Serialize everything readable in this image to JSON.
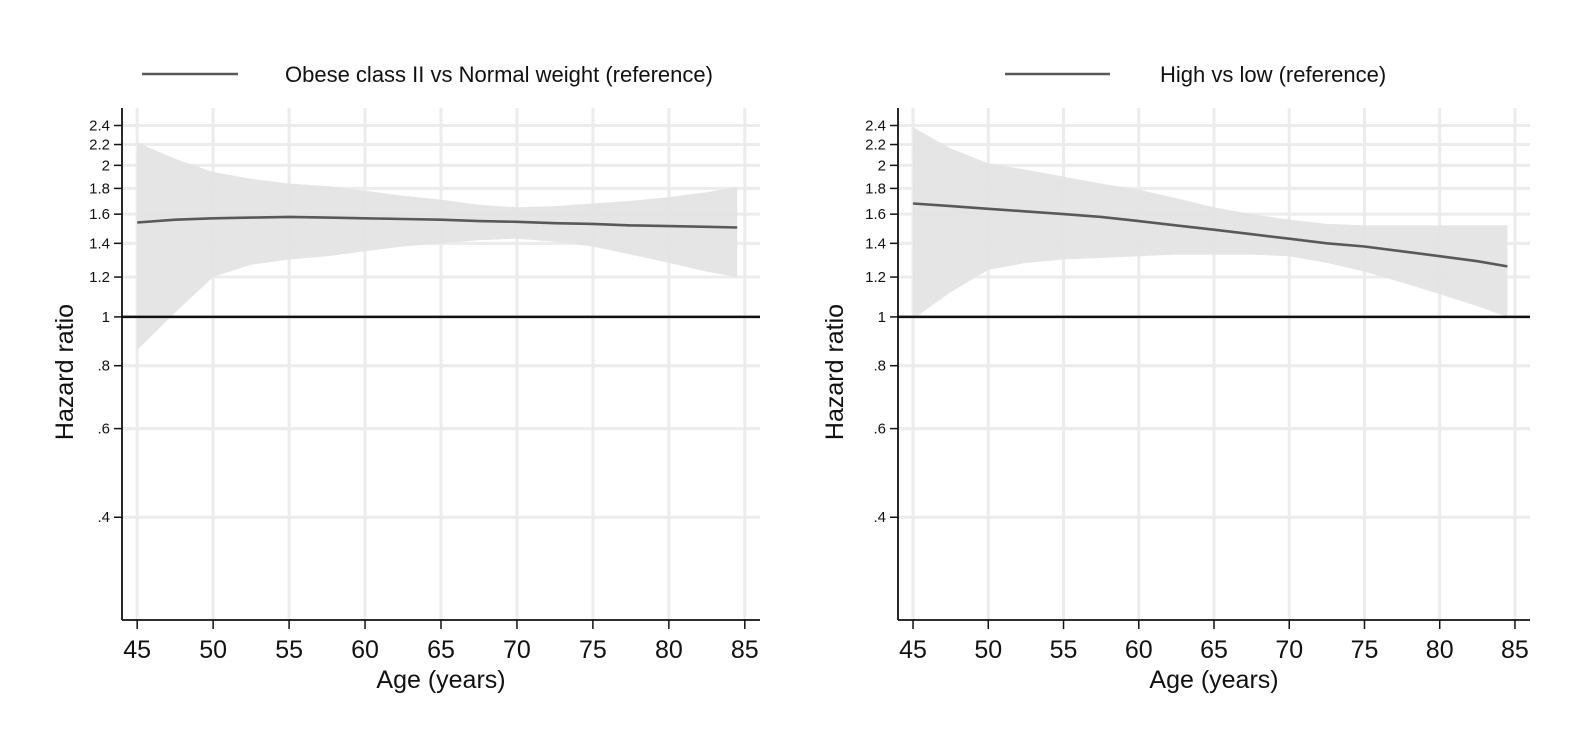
{
  "chart_data": [
    {
      "type": "line",
      "xlabel": "Age (years)",
      "ylabel": "Hazard ratio",
      "y_scale": "log",
      "xlim": [
        44,
        86
      ],
      "ylim": [
        0.25,
        2.6
      ],
      "x_ticks": [
        45,
        50,
        55,
        60,
        65,
        70,
        75,
        80,
        85
      ],
      "y_ticks": [
        ".4",
        ".6",
        ".8",
        "1",
        "1.2",
        "1.4",
        "1.6",
        "1.8",
        "2",
        "2.2",
        "2.4"
      ],
      "reference_line": 1,
      "grid": true,
      "legend_position": "top",
      "series": [
        {
          "name": "Obese class II vs Normal weight (reference)",
          "color": "#595959",
          "band_color": "#e3e3e3",
          "x": [
            45,
            47.5,
            50,
            52.5,
            55,
            57.5,
            60,
            62.5,
            65,
            67.5,
            70,
            72.5,
            75,
            77.5,
            80,
            82.5,
            84.5
          ],
          "y": [
            1.54,
            1.56,
            1.57,
            1.575,
            1.58,
            1.575,
            1.57,
            1.565,
            1.56,
            1.55,
            1.545,
            1.535,
            1.53,
            1.52,
            1.515,
            1.51,
            1.505
          ],
          "lower": [
            0.86,
            1.02,
            1.2,
            1.27,
            1.3,
            1.32,
            1.35,
            1.38,
            1.4,
            1.42,
            1.43,
            1.41,
            1.38,
            1.33,
            1.28,
            1.23,
            1.2
          ],
          "upper": [
            2.22,
            2.06,
            1.94,
            1.88,
            1.84,
            1.82,
            1.78,
            1.74,
            1.71,
            1.67,
            1.65,
            1.66,
            1.68,
            1.7,
            1.73,
            1.77,
            1.81
          ]
        }
      ]
    },
    {
      "type": "line",
      "xlabel": "Age (years)",
      "ylabel": "Hazard ratio",
      "y_scale": "log",
      "xlim": [
        44,
        86
      ],
      "ylim": [
        0.25,
        2.6
      ],
      "x_ticks": [
        45,
        50,
        55,
        60,
        65,
        70,
        75,
        80,
        85
      ],
      "y_ticks": [
        ".4",
        ".6",
        ".8",
        "1",
        "1.2",
        "1.4",
        "1.6",
        "1.8",
        "2",
        "2.2",
        "2.4"
      ],
      "reference_line": 1,
      "grid": true,
      "legend_position": "top",
      "series": [
        {
          "name": "High vs low (reference)",
          "color": "#595959",
          "band_color": "#e3e3e3",
          "x": [
            45,
            47.5,
            50,
            52.5,
            55,
            57.5,
            60,
            62.5,
            65,
            67.5,
            70,
            72.5,
            75,
            77.5,
            80,
            82.5,
            84.5
          ],
          "y": [
            1.68,
            1.66,
            1.64,
            1.62,
            1.6,
            1.58,
            1.55,
            1.52,
            1.49,
            1.46,
            1.43,
            1.4,
            1.38,
            1.35,
            1.32,
            1.29,
            1.26
          ],
          "lower": [
            0.99,
            1.12,
            1.24,
            1.28,
            1.3,
            1.31,
            1.32,
            1.33,
            1.33,
            1.33,
            1.32,
            1.28,
            1.23,
            1.17,
            1.11,
            1.05,
            1.0
          ],
          "upper": [
            2.38,
            2.16,
            2.02,
            1.96,
            1.9,
            1.84,
            1.79,
            1.72,
            1.65,
            1.6,
            1.56,
            1.53,
            1.52,
            1.52,
            1.52,
            1.52,
            1.52
          ]
        }
      ]
    }
  ]
}
